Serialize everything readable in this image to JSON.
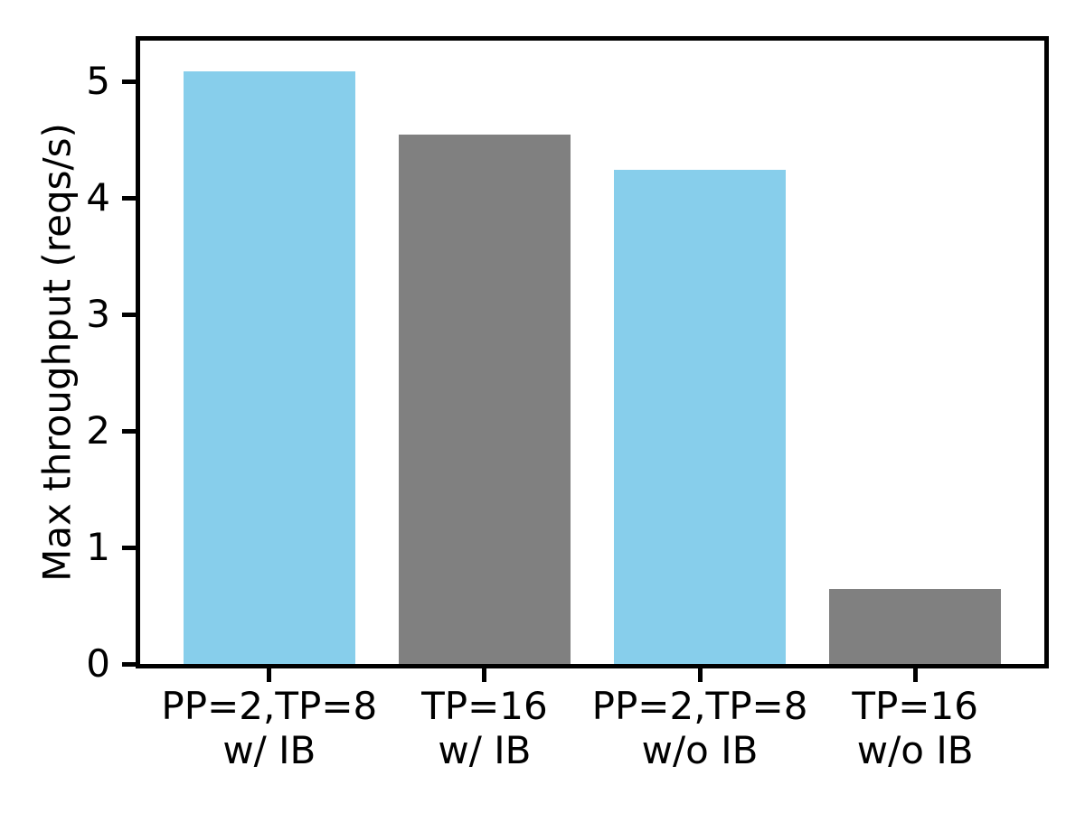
{
  "chart_data": {
    "type": "bar",
    "title": "",
    "xlabel": "",
    "ylabel": "Max throughput (reqs/s)",
    "categories": [
      [
        "PP=2,TP=8",
        "w/ IB"
      ],
      [
        "TP=16",
        "w/ IB"
      ],
      [
        "PP=2,TP=8",
        "w/o IB"
      ],
      [
        "TP=16",
        "w/o IB"
      ]
    ],
    "values": [
      5.09,
      4.54,
      4.24,
      0.64
    ],
    "bar_colors": [
      "#87CEEB",
      "#808080",
      "#87CEEB",
      "#808080"
    ],
    "y_ticks": [
      0,
      1,
      2,
      3,
      4,
      5
    ],
    "ylim": [
      0,
      5.35
    ],
    "bar_width_fraction": 0.8,
    "grid": false,
    "legend": "none",
    "axis_color": "#000000",
    "text_color": "#000000",
    "background_color": "#FFFFFF"
  }
}
